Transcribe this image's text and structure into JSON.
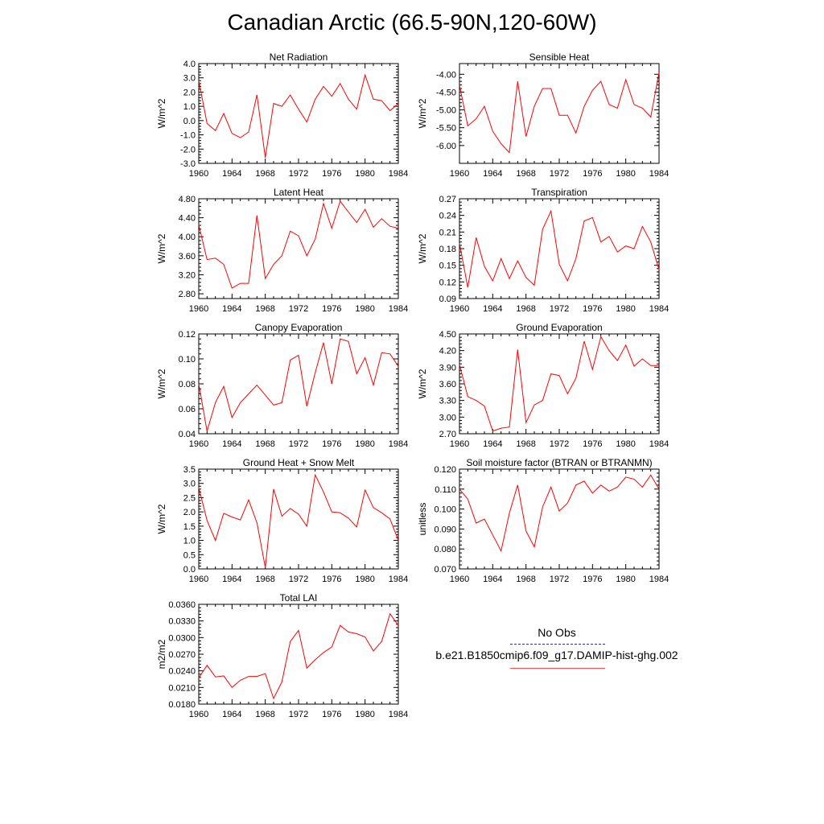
{
  "title": "Canadian Arctic (66.5-90N,120-60W)",
  "legend": {
    "obs_label": "No Obs",
    "model_label": "b.e21.B1850cmip6.f09_g17.DAMIP-hist-ghg.002",
    "obs_color": "#2a2ab8",
    "model_color": "#ff0000"
  },
  "chart_data": [
    {
      "type": "line",
      "title": "Net Radiation",
      "ylabel": "W/m^2",
      "xlim": [
        1960,
        1984
      ],
      "ylim": [
        -3.0,
        4.0
      ],
      "yticks": [
        "-3.0",
        "-2.0",
        "-1.0",
        "0.0",
        "1.0",
        "2.0",
        "3.0",
        "4.0"
      ],
      "xticks": [
        "1960",
        "1964",
        "1968",
        "1972",
        "1976",
        "1980",
        "1984"
      ],
      "x": [
        1960,
        1961,
        1962,
        1963,
        1964,
        1965,
        1966,
        1967,
        1968,
        1969,
        1970,
        1971,
        1972,
        1973,
        1974,
        1975,
        1976,
        1977,
        1978,
        1979,
        1980,
        1981,
        1982,
        1983,
        1984
      ],
      "series": [
        {
          "values": [
            2.8,
            -0.2,
            -0.7,
            0.5,
            -0.9,
            -1.2,
            -0.8,
            1.8,
            -2.6,
            1.2,
            1.0,
            1.8,
            0.8,
            -0.1,
            1.5,
            2.4,
            1.7,
            2.6,
            1.5,
            0.8,
            3.2,
            1.5,
            1.4,
            0.7,
            1.2
          ]
        }
      ]
    },
    {
      "type": "line",
      "title": "Sensible Heat",
      "ylabel": "W/m^2",
      "xlim": [
        1960,
        1984
      ],
      "ylim": [
        -6.5,
        -3.7
      ],
      "yticks": [
        "-6.00",
        "-5.50",
        "-5.00",
        "-4.50",
        "-4.00"
      ],
      "xticks": [
        "1960",
        "1964",
        "1968",
        "1972",
        "1976",
        "1980",
        "1984"
      ],
      "x": [
        1960,
        1961,
        1962,
        1963,
        1964,
        1965,
        1966,
        1967,
        1968,
        1969,
        1970,
        1971,
        1972,
        1973,
        1974,
        1975,
        1976,
        1977,
        1978,
        1979,
        1980,
        1981,
        1982,
        1983,
        1984
      ],
      "series": [
        {
          "values": [
            -4.3,
            -5.45,
            -5.25,
            -4.9,
            -5.6,
            -5.95,
            -6.2,
            -4.2,
            -5.75,
            -4.9,
            -4.4,
            -4.4,
            -5.15,
            -5.15,
            -5.65,
            -4.9,
            -4.45,
            -4.2,
            -4.85,
            -4.95,
            -4.15,
            -4.85,
            -4.95,
            -5.2,
            -3.95
          ]
        }
      ]
    },
    {
      "type": "line",
      "title": "Latent Heat",
      "ylabel": "W/m^2",
      "xlim": [
        1960,
        1984
      ],
      "ylim": [
        2.7,
        4.8
      ],
      "yticks": [
        "2.80",
        "3.20",
        "3.60",
        "4.00",
        "4.40",
        "4.80"
      ],
      "xticks": [
        "1960",
        "1964",
        "1968",
        "1972",
        "1976",
        "1980",
        "1984"
      ],
      "x": [
        1960,
        1961,
        1962,
        1963,
        1964,
        1965,
        1966,
        1967,
        1968,
        1969,
        1970,
        1971,
        1972,
        1973,
        1974,
        1975,
        1976,
        1977,
        1978,
        1979,
        1980,
        1981,
        1982,
        1983,
        1984
      ],
      "series": [
        {
          "values": [
            4.25,
            3.52,
            3.55,
            3.42,
            2.92,
            3.02,
            3.02,
            4.45,
            3.12,
            3.42,
            3.6,
            4.12,
            4.02,
            3.6,
            3.95,
            4.7,
            4.18,
            4.75,
            4.52,
            4.3,
            4.58,
            4.2,
            4.38,
            4.22,
            4.18
          ]
        }
      ]
    },
    {
      "type": "line",
      "title": "Transpiration",
      "ylabel": "W/m^2",
      "xlim": [
        1960,
        1984
      ],
      "ylim": [
        0.09,
        0.27
      ],
      "yticks": [
        "0.09",
        "0.12",
        "0.15",
        "0.18",
        "0.21",
        "0.24",
        "0.27"
      ],
      "xticks": [
        "1960",
        "1964",
        "1968",
        "1972",
        "1976",
        "1980",
        "1984"
      ],
      "x": [
        1960,
        1961,
        1962,
        1963,
        1964,
        1965,
        1966,
        1967,
        1968,
        1969,
        1970,
        1971,
        1972,
        1973,
        1974,
        1975,
        1976,
        1977,
        1978,
        1979,
        1980,
        1981,
        1982,
        1983,
        1984
      ],
      "series": [
        {
          "values": [
            0.19,
            0.11,
            0.2,
            0.148,
            0.122,
            0.162,
            0.126,
            0.158,
            0.128,
            0.114,
            0.215,
            0.248,
            0.152,
            0.122,
            0.162,
            0.23,
            0.236,
            0.192,
            0.202,
            0.174,
            0.185,
            0.18,
            0.22,
            0.192,
            0.142
          ]
        }
      ]
    },
    {
      "type": "line",
      "title": "Canopy Evaporation",
      "ylabel": "W/m^2",
      "xlim": [
        1960,
        1984
      ],
      "ylim": [
        0.04,
        0.12
      ],
      "yticks": [
        "0.04",
        "0.06",
        "0.08",
        "0.10",
        "0.12"
      ],
      "xticks": [
        "1960",
        "1964",
        "1968",
        "1972",
        "1976",
        "1980",
        "1984"
      ],
      "x": [
        1960,
        1961,
        1962,
        1963,
        1964,
        1965,
        1966,
        1967,
        1968,
        1969,
        1970,
        1971,
        1972,
        1973,
        1974,
        1975,
        1976,
        1977,
        1978,
        1979,
        1980,
        1981,
        1982,
        1983,
        1984
      ],
      "series": [
        {
          "values": [
            0.08,
            0.042,
            0.065,
            0.078,
            0.053,
            0.065,
            0.072,
            0.079,
            0.071,
            0.063,
            0.065,
            0.099,
            0.103,
            0.062,
            0.089,
            0.113,
            0.08,
            0.116,
            0.114,
            0.088,
            0.101,
            0.079,
            0.105,
            0.104,
            0.094
          ]
        }
      ]
    },
    {
      "type": "line",
      "title": "Ground Evaporation",
      "ylabel": "W/m^2",
      "xlim": [
        1960,
        1984
      ],
      "ylim": [
        2.7,
        4.5
      ],
      "yticks": [
        "2.70",
        "3.00",
        "3.30",
        "3.60",
        "3.90",
        "4.20",
        "4.50"
      ],
      "xticks": [
        "1960",
        "1964",
        "1968",
        "1972",
        "1976",
        "1980",
        "1984"
      ],
      "x": [
        1960,
        1961,
        1962,
        1963,
        1964,
        1965,
        1966,
        1967,
        1968,
        1969,
        1970,
        1971,
        1972,
        1973,
        1974,
        1975,
        1976,
        1977,
        1978,
        1979,
        1980,
        1981,
        1982,
        1983,
        1984
      ],
      "series": [
        {
          "values": [
            3.95,
            3.37,
            3.3,
            3.2,
            2.75,
            2.8,
            2.82,
            4.22,
            2.9,
            3.22,
            3.3,
            3.78,
            3.75,
            3.42,
            3.7,
            4.37,
            3.86,
            4.45,
            4.2,
            4.02,
            4.3,
            3.92,
            4.05,
            3.93,
            3.93
          ]
        }
      ]
    },
    {
      "type": "line",
      "title": "Ground Heat + Snow Melt",
      "ylabel": "W/m^2",
      "xlim": [
        1960,
        1984
      ],
      "ylim": [
        0.0,
        3.5
      ],
      "yticks": [
        "0.0",
        "0.5",
        "1.0",
        "1.5",
        "2.0",
        "2.5",
        "3.0",
        "3.5"
      ],
      "xticks": [
        "1960",
        "1964",
        "1968",
        "1972",
        "1976",
        "1980",
        "1984"
      ],
      "x": [
        1960,
        1961,
        1962,
        1963,
        1964,
        1965,
        1966,
        1967,
        1968,
        1969,
        1970,
        1971,
        1972,
        1973,
        1974,
        1975,
        1976,
        1977,
        1978,
        1979,
        1980,
        1981,
        1982,
        1983,
        1984
      ],
      "series": [
        {
          "values": [
            2.85,
            1.7,
            1.0,
            1.95,
            1.82,
            1.72,
            2.42,
            1.62,
            0.05,
            2.8,
            1.85,
            2.12,
            1.92,
            1.5,
            3.3,
            2.7,
            2.0,
            1.97,
            1.78,
            1.47,
            2.77,
            2.15,
            1.97,
            1.75,
            1.0
          ]
        }
      ]
    },
    {
      "type": "line",
      "title": "Soil moisture factor (BTRAN or BTRANMN)",
      "ylabel": "unitless",
      "xlim": [
        1960,
        1984
      ],
      "ylim": [
        0.07,
        0.12
      ],
      "yticks": [
        "0.070",
        "0.080",
        "0.090",
        "0.100",
        "0.110",
        "0.120"
      ],
      "xticks": [
        "1960",
        "1964",
        "1968",
        "1972",
        "1976",
        "1980",
        "1984"
      ],
      "x": [
        1960,
        1961,
        1962,
        1963,
        1964,
        1965,
        1966,
        1967,
        1968,
        1969,
        1970,
        1971,
        1972,
        1973,
        1974,
        1975,
        1976,
        1977,
        1978,
        1979,
        1980,
        1981,
        1982,
        1983,
        1984
      ],
      "series": [
        {
          "values": [
            0.11,
            0.105,
            0.093,
            0.095,
            0.087,
            0.079,
            0.098,
            0.112,
            0.089,
            0.081,
            0.101,
            0.111,
            0.099,
            0.103,
            0.112,
            0.114,
            0.108,
            0.112,
            0.109,
            0.111,
            0.116,
            0.115,
            0.111,
            0.117,
            0.11
          ]
        }
      ]
    },
    {
      "type": "line",
      "title": "Total LAI",
      "ylabel": "m2/m2",
      "xlim": [
        1960,
        1984
      ],
      "ylim": [
        0.018,
        0.036
      ],
      "yticks": [
        "0.0180",
        "0.0210",
        "0.0240",
        "0.0270",
        "0.0300",
        "0.0330",
        "0.0360"
      ],
      "xticks": [
        "1960",
        "1964",
        "1968",
        "1972",
        "1976",
        "1980",
        "1984"
      ],
      "x": [
        1960,
        1961,
        1962,
        1963,
        1964,
        1965,
        1966,
        1967,
        1968,
        1969,
        1970,
        1971,
        1972,
        1973,
        1974,
        1975,
        1976,
        1977,
        1978,
        1979,
        1980,
        1981,
        1982,
        1983,
        1984
      ],
      "series": [
        {
          "values": [
            0.0227,
            0.025,
            0.0229,
            0.0231,
            0.021,
            0.0223,
            0.023,
            0.023,
            0.0235,
            0.019,
            0.022,
            0.0293,
            0.0313,
            0.0245,
            0.026,
            0.0273,
            0.0283,
            0.0322,
            0.031,
            0.0307,
            0.0301,
            0.0276,
            0.0293,
            0.0343,
            0.0322
          ]
        }
      ]
    }
  ]
}
